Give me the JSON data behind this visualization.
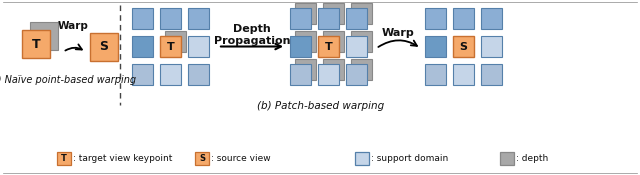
{
  "fig_width": 6.4,
  "fig_height": 1.75,
  "dpi": 100,
  "bg_color": "#ffffff",
  "orange_color": "#F5A96A",
  "orange_border": "#C87030",
  "blue_dark": "#6B9AC4",
  "blue_mid": "#8BAED4",
  "blue_light": "#AABFD8",
  "blue_vlight": "#C5D5E8",
  "blue_border": "#5580AA",
  "gray_color": "#A8A8A8",
  "gray_border": "#888888",
  "text_color": "#111111",
  "label_a": "(a) Naïve point-based warping",
  "label_b": "(b) Patch-based warping",
  "legend_T_text": ": target view keypoint",
  "legend_S_text": ": source view",
  "legend_blue_text": ": support domain",
  "legend_gray_text": ": depth",
  "warp_text": "Warp",
  "depth_prop_line1": "Depth",
  "depth_prop_line2": "Propagation"
}
